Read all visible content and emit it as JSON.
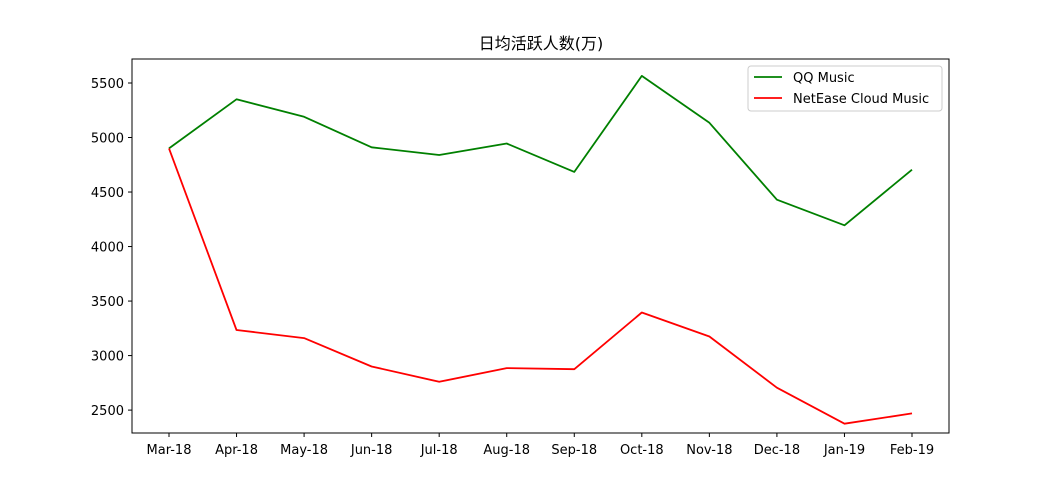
{
  "chart_data": {
    "type": "line",
    "title": "日均活跃人数(万)",
    "xlabel": "",
    "ylabel": "",
    "categories": [
      "Mar-18",
      "Apr-18",
      "May-18",
      "Jun-18",
      "Jul-18",
      "Aug-18",
      "Sep-18",
      "Oct-18",
      "Nov-18",
      "Dec-18",
      "Jan-19",
      "Feb-19"
    ],
    "series": [
      {
        "name": "QQ Music",
        "color": "#008000",
        "values": [
          4900,
          5350,
          5190,
          4910,
          4840,
          4945,
          4685,
          5565,
          5135,
          4430,
          4195,
          4705
        ]
      },
      {
        "name": "NetEase Cloud Music",
        "color": "#ff0000",
        "values": [
          4900,
          3235,
          3160,
          2900,
          2760,
          2885,
          2875,
          3395,
          3175,
          2705,
          2375,
          2470
        ]
      }
    ],
    "ylim": [
      2290,
      5720
    ],
    "yticks": [
      2500,
      3000,
      3500,
      4000,
      4500,
      5000,
      5500
    ],
    "grid": false,
    "legend_position": "top-right"
  }
}
